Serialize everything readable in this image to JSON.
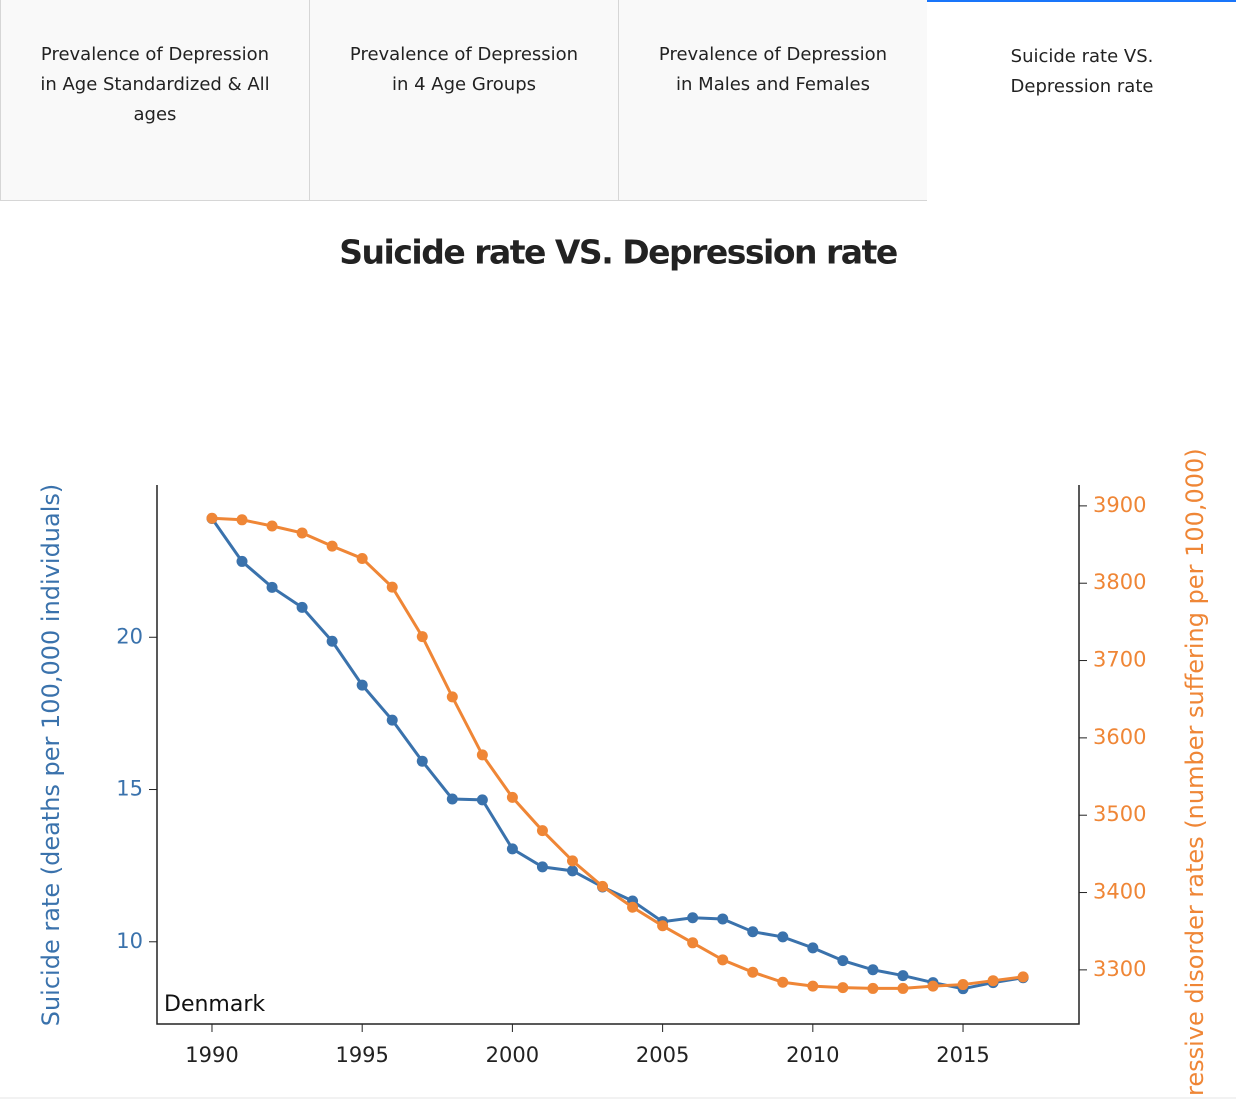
{
  "tabs": [
    {
      "label": "Prevalence of Depression in Age Standardized & All ages"
    },
    {
      "label": "Prevalence of Depression in 4 Age Groups"
    },
    {
      "label": "Prevalence of Depression in Males and Females"
    },
    {
      "label": "Suicide rate VS. Depression rate"
    }
  ],
  "chart_data": {
    "type": "line",
    "title": "Suicide rate VS. Depression rate",
    "y_label": "Suicide rate (deaths per 100,000 individuals)",
    "y2_label": "ressive disorder rates (number suffering per 100,000)",
    "annotation": "Denmark",
    "x": [
      1990,
      1991,
      1992,
      1993,
      1994,
      1995,
      1996,
      1997,
      1998,
      1999,
      2000,
      2001,
      2002,
      2003,
      2004,
      2005,
      2006,
      2007,
      2008,
      2009,
      2010,
      2011,
      2012,
      2013,
      2014,
      2015,
      2016,
      2017
    ],
    "series": [
      {
        "color": "#3a72ac",
        "axis": "y",
        "values": [
          23.9,
          22.49,
          21.64,
          20.98,
          19.87,
          18.43,
          17.28,
          15.93,
          14.69,
          14.66,
          13.05,
          12.46,
          12.33,
          11.8,
          11.34,
          10.66,
          10.79,
          10.75,
          10.33,
          10.16,
          9.8,
          9.38,
          9.08,
          8.89,
          8.66,
          8.46,
          8.66,
          8.82
        ]
      },
      {
        "color": "#ef8636",
        "axis": "y2",
        "values": [
          3884,
          3882,
          3874,
          3865,
          3848,
          3832,
          3795,
          3731,
          3653,
          3578,
          3523,
          3480,
          3441,
          3408,
          3381,
          3357,
          3335,
          3313,
          3297,
          3284,
          3279,
          3277,
          3276,
          3276,
          3279,
          3281,
          3286,
          3291
        ]
      }
    ],
    "xlim": [
      1988.17,
      2018.86
    ],
    "xticks": [
      1990,
      1995,
      2000,
      2005,
      2010,
      2015
    ],
    "ylim": [
      7.3,
      25
    ],
    "yticks": [
      10,
      15,
      20
    ],
    "y2lim": [
      3230,
      3927
    ],
    "y2ticks": [
      3300,
      3400,
      3500,
      3600,
      3700,
      3800,
      3900
    ]
  }
}
